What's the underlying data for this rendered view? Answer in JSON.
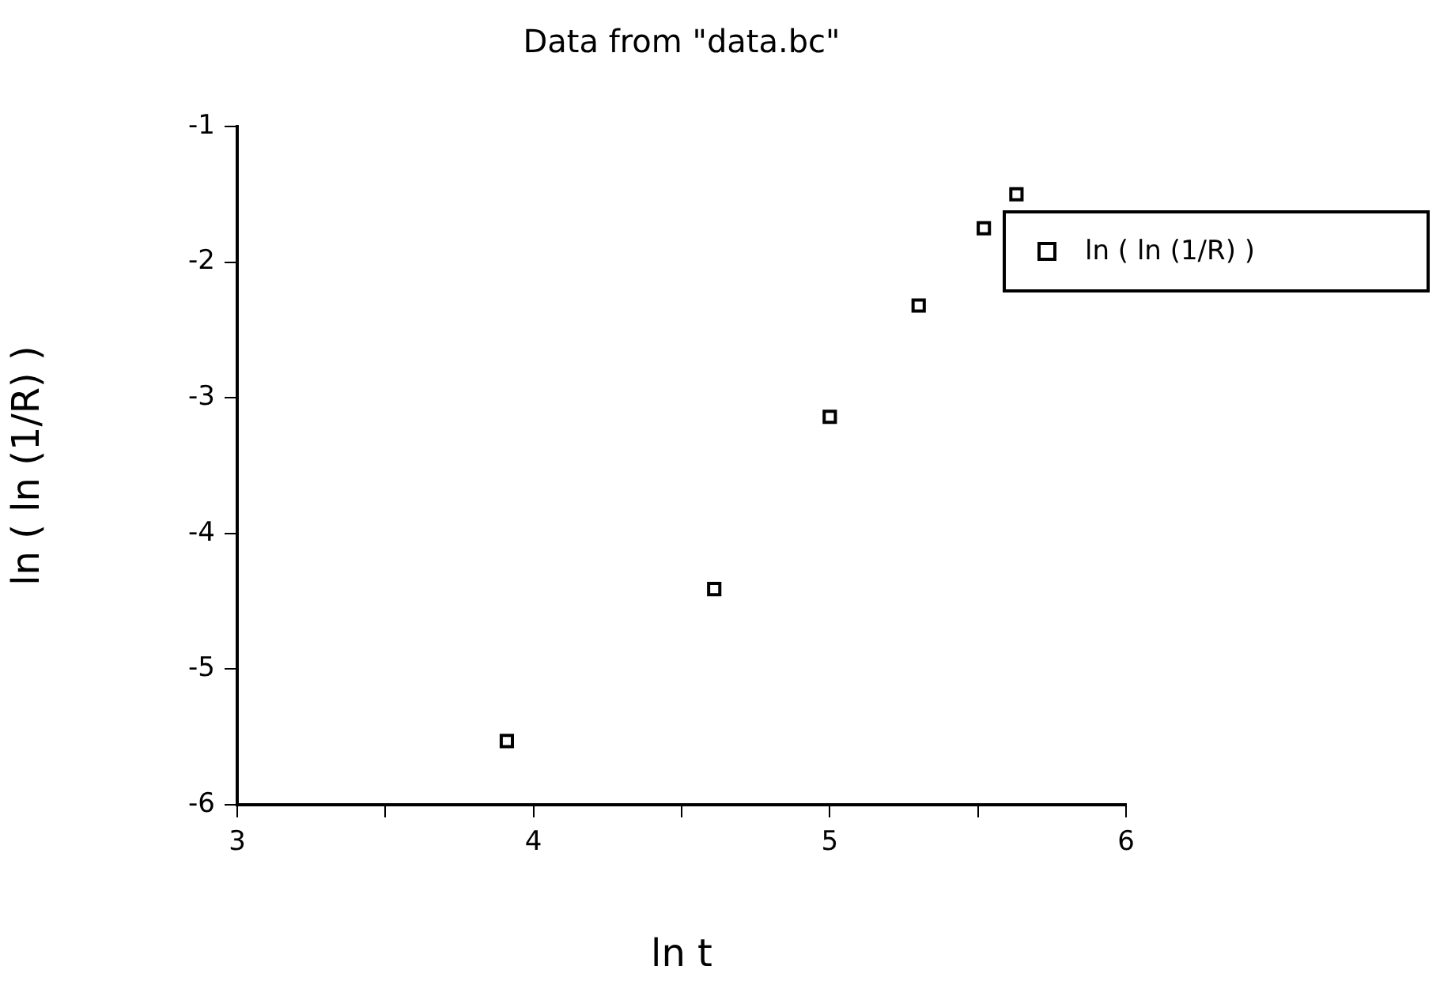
{
  "chart_data": {
    "type": "scatter",
    "title": "Data from \"data.bc\"",
    "xlabel": "ln t",
    "ylabel": "ln ( ln (1/R) )",
    "series": [
      {
        "name": "ln ( ln (1/R) )",
        "color": "#000000",
        "x": [
          3.91,
          4.61,
          5.0,
          5.3,
          5.52,
          5.63
        ],
        "values": [
          -5.53,
          -4.41,
          -3.14,
          -2.32,
          -1.75,
          -1.5
        ]
      }
    ],
    "xlim": [
      3,
      6
    ],
    "xticks": [
      3,
      {
        "value": 3.5,
        "label": null
      },
      4,
      {
        "value": 4.5,
        "label": null
      },
      5,
      {
        "value": 5.5,
        "label": null
      },
      6
    ],
    "ylim": [
      -6,
      -1
    ],
    "yticks": [
      -6,
      -5,
      -4,
      -3,
      -2,
      -1
    ],
    "grid": false,
    "legend": "right",
    "marker": "square"
  }
}
